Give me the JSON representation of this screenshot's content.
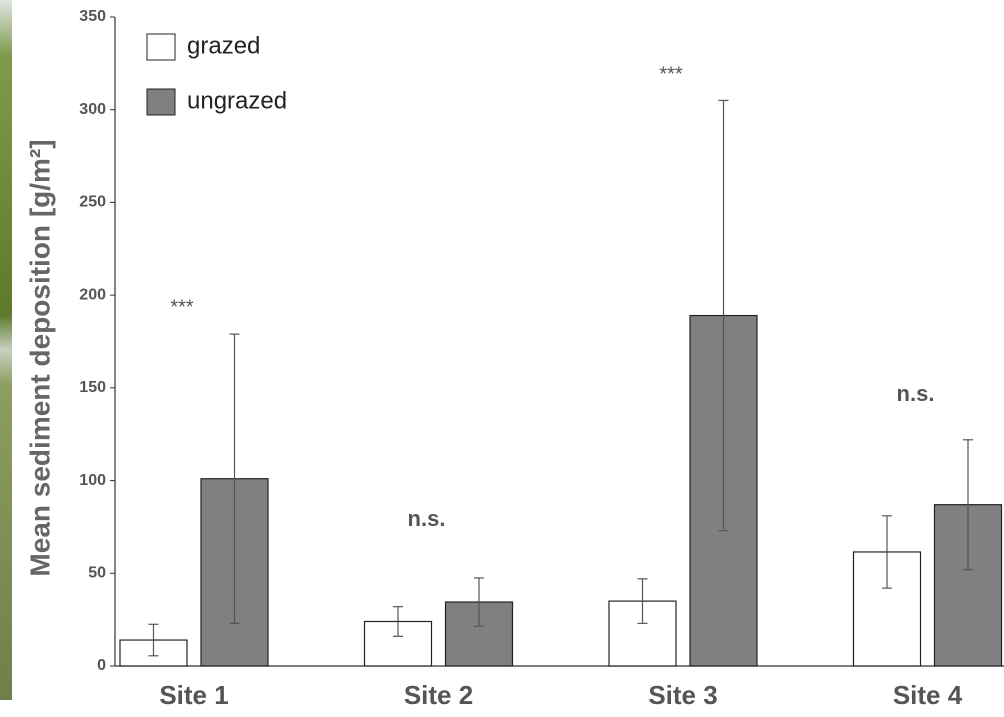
{
  "chart_data": {
    "type": "bar",
    "y_label": "Mean sediment deposition [g/m²]",
    "categories": [
      "Site 1",
      "Site 2",
      "Site 3",
      "Site 4"
    ],
    "series": [
      {
        "name": "grazed",
        "color": "#ffffff",
        "values": [
          14,
          24,
          35,
          61.5
        ],
        "errors": [
          8.5,
          8,
          12,
          19.5
        ]
      },
      {
        "name": "ungrazed",
        "color": "#808080",
        "values": [
          101,
          34.5,
          189,
          87
        ],
        "errors": [
          78,
          13,
          116,
          35
        ]
      }
    ],
    "annotations": [
      "***",
      "n.s.",
      "***",
      "n.s."
    ],
    "ylim": [
      0,
      350
    ],
    "yticks": [
      0,
      50,
      100,
      150,
      200,
      250,
      300,
      350
    ]
  }
}
